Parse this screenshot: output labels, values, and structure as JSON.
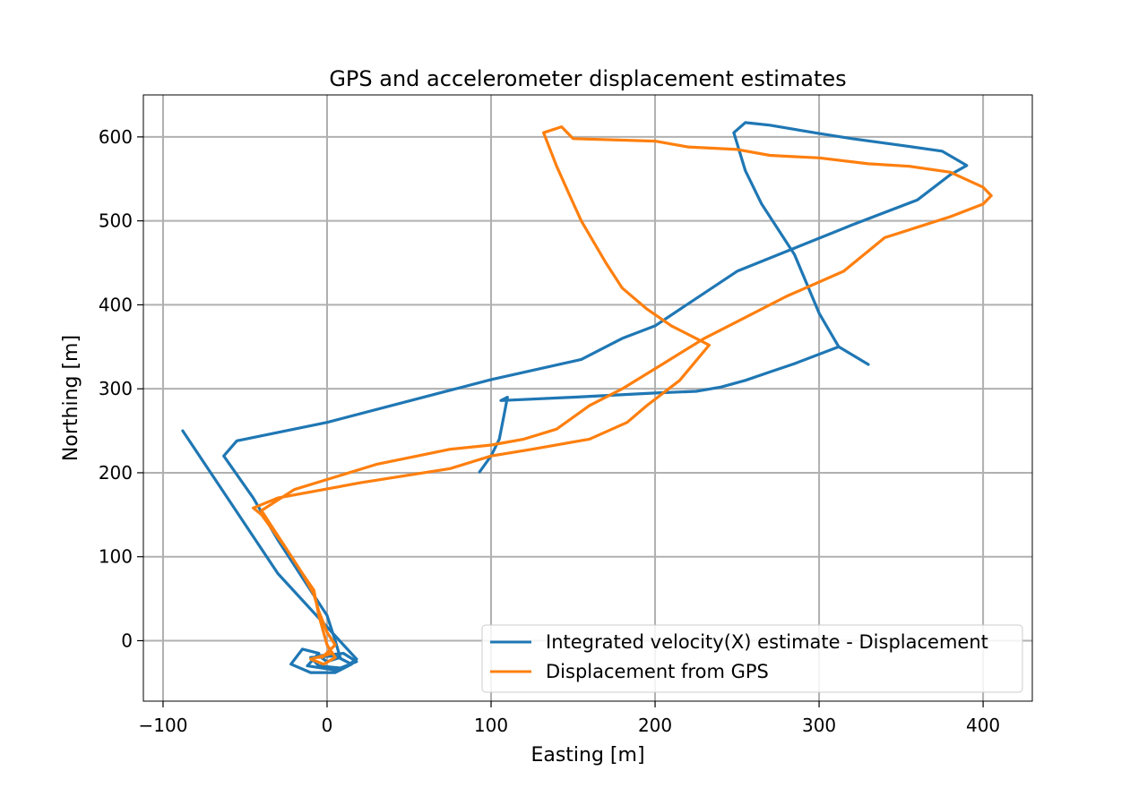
{
  "chart_data": {
    "type": "line",
    "title": "GPS and accelerometer displacement estimates",
    "xlabel": "Easting [m]",
    "ylabel": "Northing [m]",
    "xlim": [
      -112,
      430
    ],
    "ylim": [
      -72,
      650
    ],
    "xticks": [
      -100,
      0,
      100,
      200,
      300,
      400
    ],
    "xtick_labels": [
      "−100",
      "0",
      "100",
      "200",
      "300",
      "400"
    ],
    "yticks": [
      0,
      100,
      200,
      300,
      400,
      500,
      600
    ],
    "ytick_labels": [
      "0",
      "100",
      "200",
      "300",
      "400",
      "500",
      "600"
    ],
    "grid": true,
    "legend_position": "lower-right",
    "series": [
      {
        "name": "Integrated velocity(X) estimate - Displacement",
        "color": "#1f77b4",
        "points": [
          [
            93,
            201
          ],
          [
            100,
            220
          ],
          [
            105,
            240
          ],
          [
            108,
            270
          ],
          [
            110,
            290
          ],
          [
            106,
            286
          ],
          [
            150,
            290
          ],
          [
            200,
            295
          ],
          [
            225,
            297
          ],
          [
            240,
            302
          ],
          [
            255,
            310
          ],
          [
            270,
            320
          ],
          [
            285,
            330
          ],
          [
            312,
            350
          ],
          [
            330,
            329
          ],
          [
            312,
            350
          ],
          [
            300,
            390
          ],
          [
            285,
            460
          ],
          [
            265,
            520
          ],
          [
            255,
            560
          ],
          [
            248,
            605
          ],
          [
            255,
            617
          ],
          [
            270,
            614
          ],
          [
            300,
            604
          ],
          [
            320,
            598
          ],
          [
            350,
            590
          ],
          [
            375,
            583
          ],
          [
            390,
            566
          ],
          [
            380,
            555
          ],
          [
            360,
            525
          ],
          [
            320,
            495
          ],
          [
            250,
            440
          ],
          [
            200,
            375
          ],
          [
            180,
            360
          ],
          [
            155,
            335
          ],
          [
            100,
            311
          ],
          [
            0,
            260
          ],
          [
            -55,
            238
          ],
          [
            -63,
            220
          ],
          [
            -45,
            170
          ],
          [
            -30,
            120
          ],
          [
            -15,
            75
          ],
          [
            0,
            30
          ],
          [
            5,
            0
          ],
          [
            8,
            -20
          ],
          [
            0,
            -25
          ],
          [
            -5,
            -18
          ],
          [
            10,
            -15
          ],
          [
            18,
            -25
          ],
          [
            5,
            -35
          ],
          [
            -12,
            -30
          ],
          [
            -5,
            -15
          ],
          [
            -15,
            -10
          ],
          [
            -22,
            -28
          ],
          [
            -10,
            -38
          ],
          [
            5,
            -38
          ],
          [
            15,
            -28
          ],
          [
            5,
            -18
          ],
          [
            -10,
            -20
          ],
          [
            -5,
            -30
          ],
          [
            10,
            -33
          ],
          [
            18,
            -22
          ],
          [
            -30,
            80
          ],
          [
            -88,
            250
          ]
        ]
      },
      {
        "name": "Displacement from GPS",
        "color": "#ff7f0e",
        "points": [
          [
            -5,
            -20
          ],
          [
            3,
            -15
          ],
          [
            -10,
            -22
          ],
          [
            -2,
            -28
          ],
          [
            5,
            -20
          ],
          [
            0,
            -5
          ],
          [
            -5,
            30
          ],
          [
            -8,
            60
          ],
          [
            -15,
            80
          ],
          [
            -25,
            110
          ],
          [
            -40,
            150
          ],
          [
            -45,
            158
          ],
          [
            -30,
            170
          ],
          [
            20,
            188
          ],
          [
            75,
            205
          ],
          [
            100,
            220
          ],
          [
            125,
            228
          ],
          [
            160,
            240
          ],
          [
            183,
            260
          ],
          [
            195,
            280
          ],
          [
            215,
            310
          ],
          [
            233,
            352
          ],
          [
            225,
            360
          ],
          [
            210,
            375
          ],
          [
            195,
            395
          ],
          [
            180,
            420
          ],
          [
            170,
            450
          ],
          [
            155,
            500
          ],
          [
            148,
            530
          ],
          [
            140,
            565
          ],
          [
            132,
            605
          ],
          [
            143,
            612
          ],
          [
            150,
            598
          ],
          [
            200,
            595
          ],
          [
            220,
            588
          ],
          [
            250,
            585
          ],
          [
            270,
            578
          ],
          [
            280,
            577
          ],
          [
            300,
            575
          ],
          [
            330,
            568
          ],
          [
            355,
            565
          ],
          [
            380,
            558
          ],
          [
            400,
            540
          ],
          [
            405,
            530
          ],
          [
            400,
            520
          ],
          [
            380,
            505
          ],
          [
            340,
            480
          ],
          [
            315,
            440
          ],
          [
            280,
            410
          ],
          [
            250,
            380
          ],
          [
            230,
            360
          ],
          [
            205,
            330
          ],
          [
            180,
            300
          ],
          [
            160,
            280
          ],
          [
            140,
            252
          ],
          [
            120,
            240
          ],
          [
            100,
            233
          ],
          [
            75,
            228
          ],
          [
            30,
            210
          ],
          [
            -20,
            180
          ],
          [
            -40,
            155
          ],
          [
            -35,
            140
          ],
          [
            -25,
            110
          ],
          [
            -15,
            80
          ],
          [
            -8,
            55
          ],
          [
            -5,
            35
          ],
          [
            0,
            10
          ],
          [
            5,
            -5
          ],
          [
            -3,
            -20
          ]
        ]
      }
    ]
  }
}
